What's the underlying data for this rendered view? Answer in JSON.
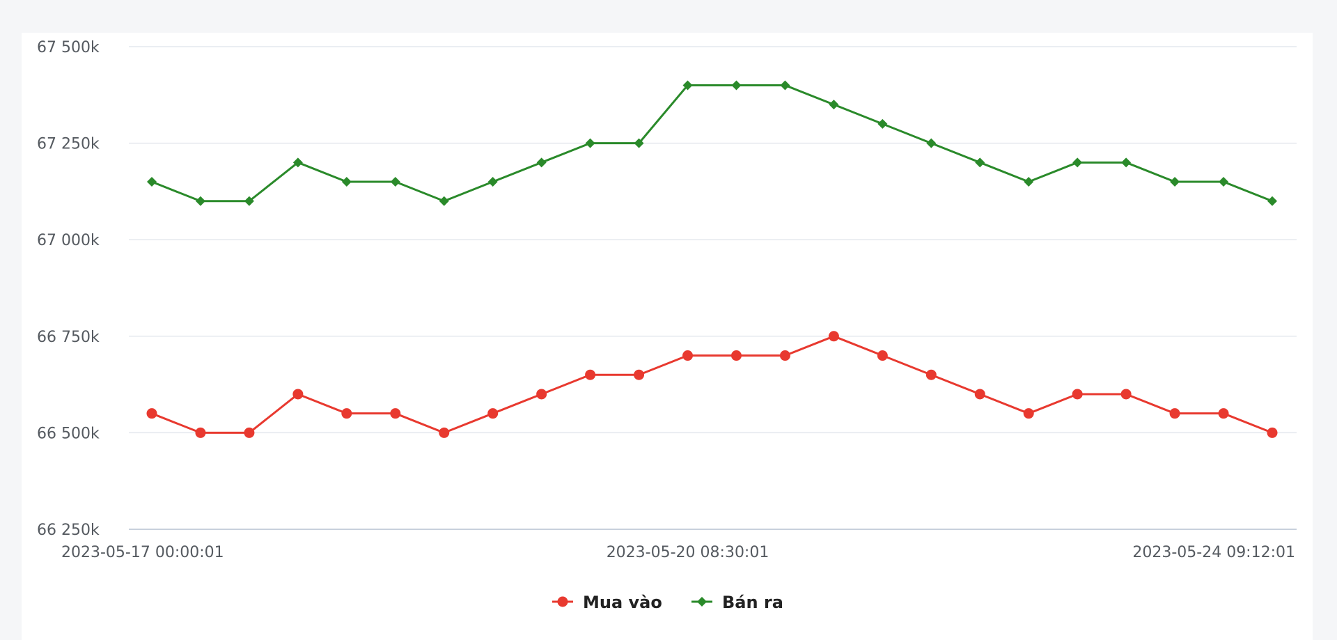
{
  "chart_data": {
    "type": "line",
    "title": "",
    "xlabel": "",
    "ylabel": "",
    "ylim": [
      66250,
      67500
    ],
    "yticks": [
      66250,
      66500,
      66750,
      67000,
      67250,
      67500
    ],
    "ytick_labels": [
      "66 250k",
      "66 500k",
      "66 750k",
      "67 000k",
      "67 250k",
      "67 500k"
    ],
    "x_count": 24,
    "x_tick_labels": [
      {
        "index": 0,
        "label": "2023-05-17 00:00:01"
      },
      {
        "index": 11,
        "label": "2023-05-20 08:30:01"
      },
      {
        "index": 23,
        "label": "2023-05-24 09:12:01"
      }
    ],
    "grid": true,
    "legend_position": "bottom-center",
    "series": [
      {
        "name": "Mua vào",
        "color": "#e8392f",
        "marker": "circle",
        "values": [
          66550,
          66500,
          66500,
          66600,
          66550,
          66550,
          66500,
          66550,
          66600,
          66650,
          66650,
          66700,
          66700,
          66700,
          66750,
          66700,
          66650,
          66600,
          66550,
          66600,
          66600,
          66550,
          66550,
          66500
        ]
      },
      {
        "name": "Bán ra",
        "color": "#2a8a2a",
        "marker": "diamond",
        "values": [
          67150,
          67100,
          67100,
          67200,
          67150,
          67150,
          67100,
          67150,
          67200,
          67250,
          67250,
          67400,
          67400,
          67400,
          67350,
          67300,
          67250,
          67200,
          67150,
          67200,
          67200,
          67150,
          67150,
          67100
        ]
      }
    ]
  }
}
